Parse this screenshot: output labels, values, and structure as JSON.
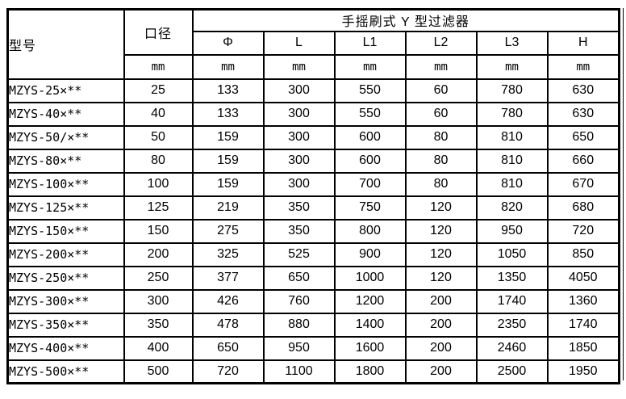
{
  "table": {
    "model_header": "型号",
    "diameter_header": "口径",
    "group_header": "手摇刷式 Y 型过滤器",
    "dimension_columns": [
      "Φ",
      "L",
      "L1",
      "L2",
      "L3",
      "H"
    ],
    "unit_label": "mm",
    "rows": [
      {
        "model": "MZYS-25×**",
        "values": [
          25,
          133,
          300,
          550,
          60,
          780,
          630
        ]
      },
      {
        "model": "MZYS-40×**",
        "values": [
          40,
          133,
          300,
          550,
          60,
          780,
          630
        ]
      },
      {
        "model": "MZYS-50/×**",
        "values": [
          50,
          159,
          300,
          600,
          80,
          810,
          650
        ]
      },
      {
        "model": "MZYS-80×**",
        "values": [
          80,
          159,
          300,
          600,
          80,
          810,
          660
        ]
      },
      {
        "model": "MZYS-100×**",
        "values": [
          100,
          159,
          300,
          700,
          80,
          810,
          670
        ]
      },
      {
        "model": "MZYS-125×**",
        "values": [
          125,
          219,
          350,
          750,
          120,
          820,
          680
        ]
      },
      {
        "model": "MZYS-150×**",
        "values": [
          150,
          275,
          350,
          800,
          120,
          950,
          720
        ]
      },
      {
        "model": "MZYS-200×**",
        "values": [
          200,
          325,
          525,
          900,
          120,
          1050,
          850
        ]
      },
      {
        "model": "MZYS-250×**",
        "values": [
          250,
          377,
          650,
          1000,
          120,
          1350,
          4050
        ]
      },
      {
        "model": "MZYS-300×**",
        "values": [
          300,
          426,
          760,
          1200,
          200,
          1740,
          1360
        ]
      },
      {
        "model": "MZYS-350×**",
        "values": [
          350,
          478,
          880,
          1400,
          200,
          2350,
          1740
        ]
      },
      {
        "model": "MZYS-400×**",
        "values": [
          400,
          650,
          950,
          1600,
          200,
          2460,
          1850
        ]
      },
      {
        "model": "MZYS-500×**",
        "values": [
          500,
          720,
          1100,
          1800,
          200,
          2500,
          1950
        ]
      }
    ]
  },
  "colors": {
    "border": "#000000",
    "text": "#000000",
    "background": "#ffffff"
  }
}
